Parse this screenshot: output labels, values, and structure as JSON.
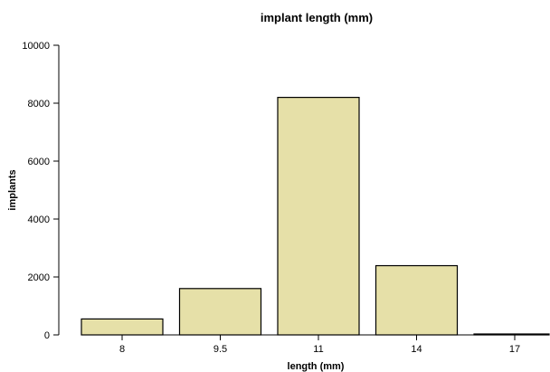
{
  "chart_data": {
    "type": "bar",
    "title": "implant length (mm)",
    "xlabel": "length (mm)",
    "ylabel": "implants",
    "categories": [
      "8",
      "9.5",
      "11",
      "14",
      "17"
    ],
    "values": [
      550,
      1600,
      8200,
      2390,
      30
    ],
    "ylim": [
      0,
      10000
    ],
    "yticks": [
      0,
      2000,
      4000,
      6000,
      8000,
      10000
    ],
    "bar_color": "#e6e0a8",
    "grid": false,
    "legend": "none"
  }
}
